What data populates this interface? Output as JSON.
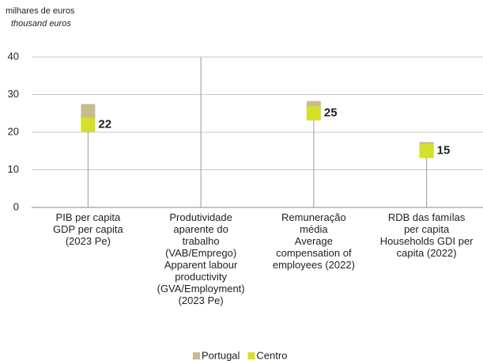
{
  "chart_data": {
    "type": "dot",
    "unit_label": "milhares de euros",
    "unit_label_en": "thousand euros",
    "categories": [
      "PIB per capita\nGDP per capita\n(2023 Pe)",
      "Produtividade\naparente do\ntrabalho\n(VAB/Emprego)\nApparent labour\nproductivity\n(GVA/Employment)\n(2023 Pe)",
      "Remuneração\nmédia\nAverage\ncompensation of\nemployees (2022)",
      "RDB das famílas\nper capita\nHouseholds GDI per\ncapita (2022)"
    ],
    "series": [
      {
        "name": "Portugal",
        "color": "#c9bc8c",
        "values": [
          25.6,
          null,
          26.4,
          15.5
        ]
      },
      {
        "name": "Centro",
        "color": "#d4e02a",
        "values": [
          22,
          null,
          25,
          15
        ],
        "show_labels": true
      }
    ],
    "ylim": [
      0,
      40
    ],
    "yticks": [
      0,
      10,
      20,
      30,
      40
    ],
    "grid": true,
    "legend": "bottom"
  }
}
